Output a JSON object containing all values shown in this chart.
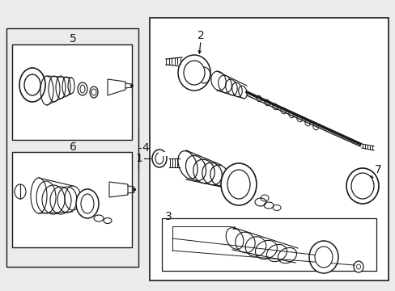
{
  "bg_color": "#ebebeb",
  "white": "#ffffff",
  "line_color": "#1a1a1a",
  "fig_width": 4.89,
  "fig_height": 3.6,
  "dpi": 100
}
